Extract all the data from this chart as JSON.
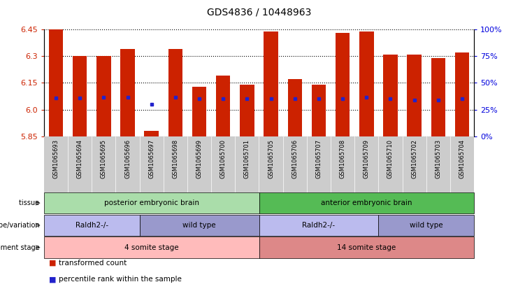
{
  "title": "GDS4836 / 10448963",
  "samples": [
    "GSM1065693",
    "GSM1065694",
    "GSM1065695",
    "GSM1065696",
    "GSM1065697",
    "GSM1065698",
    "GSM1065699",
    "GSM1065700",
    "GSM1065701",
    "GSM1065705",
    "GSM1065706",
    "GSM1065707",
    "GSM1065708",
    "GSM1065709",
    "GSM1065710",
    "GSM1065702",
    "GSM1065703",
    "GSM1065704"
  ],
  "transformed_count": [
    6.45,
    6.3,
    6.3,
    6.34,
    5.88,
    6.34,
    6.13,
    6.19,
    6.14,
    6.44,
    6.17,
    6.14,
    6.43,
    6.44,
    6.31,
    6.31,
    6.29,
    6.32
  ],
  "percentile_rank": [
    6.065,
    6.065,
    6.07,
    6.07,
    6.03,
    6.07,
    6.063,
    6.063,
    6.063,
    6.063,
    6.063,
    6.063,
    6.063,
    6.07,
    6.063,
    6.055,
    6.055,
    6.063
  ],
  "ymin": 5.85,
  "ymax": 6.45,
  "yticks": [
    5.85,
    6.0,
    6.15,
    6.3,
    6.45
  ],
  "right_yticks": [
    0,
    25,
    50,
    75,
    100
  ],
  "bar_color": "#cc2200",
  "percentile_color": "#2222cc",
  "tissue_groups": [
    {
      "label": "posterior embryonic brain",
      "start": 0,
      "end": 9,
      "color": "#aaddaa"
    },
    {
      "label": "anterior embryonic brain",
      "start": 9,
      "end": 18,
      "color": "#55bb55"
    }
  ],
  "genotype_groups": [
    {
      "label": "Raldh2-/-",
      "start": 0,
      "end": 4,
      "color": "#bbbbee"
    },
    {
      "label": "wild type",
      "start": 4,
      "end": 9,
      "color": "#9999cc"
    },
    {
      "label": "Raldh2-/-",
      "start": 9,
      "end": 14,
      "color": "#bbbbee"
    },
    {
      "label": "wild type",
      "start": 14,
      "end": 18,
      "color": "#9999cc"
    }
  ],
  "dev_stage_groups": [
    {
      "label": "4 somite stage",
      "start": 0,
      "end": 9,
      "color": "#ffbbbb"
    },
    {
      "label": "14 somite stage",
      "start": 9,
      "end": 18,
      "color": "#dd8888"
    }
  ],
  "row_labels": [
    "tissue",
    "genotype/variation",
    "development stage"
  ],
  "legend": [
    {
      "label": "transformed count",
      "color": "#cc2200"
    },
    {
      "label": "percentile rank within the sample",
      "color": "#2222cc"
    }
  ]
}
